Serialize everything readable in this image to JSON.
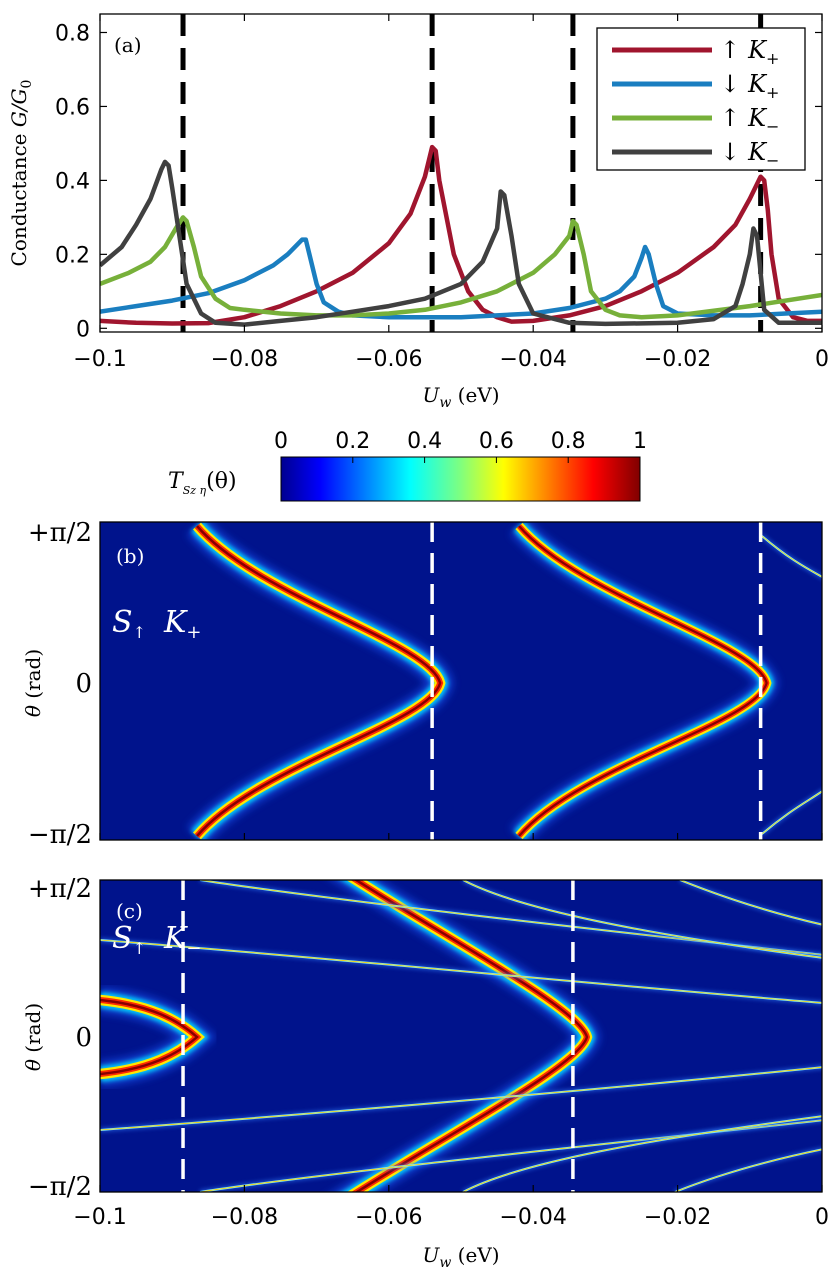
{
  "chart_data": [
    {
      "type": "line",
      "panel": "(a)",
      "xlabel_symbol": "U",
      "xlabel_sub": "w",
      "xlabel_unit": " (eV)",
      "ylabel_text": "Conductance ",
      "ylabel_symbol": "G/G",
      "ylabel_sub": "0",
      "xlim": [
        -0.1,
        0
      ],
      "ylim": [
        -0.01,
        0.85
      ],
      "xticks": [
        "−0.1",
        "−0.08",
        "−0.06",
        "−0.04",
        "−0.02",
        "0"
      ],
      "xtick_values": [
        -0.1,
        -0.08,
        -0.06,
        -0.04,
        -0.02,
        0
      ],
      "yticks": [
        "0",
        "0.2",
        "0.4",
        "0.6",
        "0.8"
      ],
      "ytick_values": [
        0,
        0.2,
        0.4,
        0.6,
        0.8
      ],
      "vlines": [
        -0.0885,
        -0.054,
        -0.0345,
        -0.0085
      ],
      "legend_position": "top-right",
      "series": [
        {
          "name_arrow": "↑",
          "name_K": "K",
          "name_sub": "+",
          "color": "#a0152e",
          "x": [
            -0.1,
            -0.095,
            -0.09,
            -0.085,
            -0.08,
            -0.075,
            -0.07,
            -0.065,
            -0.06,
            -0.057,
            -0.055,
            -0.054,
            -0.0535,
            -0.053,
            -0.051,
            -0.049,
            -0.047,
            -0.045,
            -0.043,
            -0.04,
            -0.035,
            -0.03,
            -0.025,
            -0.02,
            -0.015,
            -0.012,
            -0.01,
            -0.0085,
            -0.008,
            -0.0075,
            -0.007,
            -0.006,
            -0.004,
            -0.002,
            0
          ],
          "y": [
            0.02,
            0.015,
            0.013,
            0.014,
            0.03,
            0.06,
            0.1,
            0.15,
            0.23,
            0.31,
            0.41,
            0.49,
            0.48,
            0.4,
            0.2,
            0.1,
            0.05,
            0.03,
            0.018,
            0.02,
            0.035,
            0.06,
            0.1,
            0.15,
            0.22,
            0.28,
            0.35,
            0.41,
            0.4,
            0.32,
            0.2,
            0.08,
            0.03,
            0.02,
            0.02
          ]
        },
        {
          "name_arrow": "↓",
          "name_K": "K",
          "name_sub": "+",
          "color": "#1a7ec0",
          "x": [
            -0.1,
            -0.095,
            -0.09,
            -0.085,
            -0.08,
            -0.076,
            -0.074,
            -0.072,
            -0.0715,
            -0.071,
            -0.07,
            -0.069,
            -0.067,
            -0.065,
            -0.06,
            -0.05,
            -0.04,
            -0.035,
            -0.03,
            -0.028,
            -0.026,
            -0.025,
            -0.0245,
            -0.024,
            -0.023,
            -0.022,
            -0.02,
            -0.015,
            -0.01,
            -0.005,
            0
          ],
          "y": [
            0.045,
            0.06,
            0.075,
            0.095,
            0.13,
            0.17,
            0.2,
            0.24,
            0.24,
            0.2,
            0.12,
            0.07,
            0.045,
            0.035,
            0.03,
            0.03,
            0.04,
            0.055,
            0.08,
            0.1,
            0.14,
            0.19,
            0.22,
            0.2,
            0.12,
            0.06,
            0.04,
            0.035,
            0.035,
            0.04,
            0.045
          ]
        },
        {
          "name_arrow": "↑",
          "name_K": "K",
          "name_sub": "−",
          "color": "#77b03a",
          "x": [
            -0.1,
            -0.096,
            -0.093,
            -0.091,
            -0.0895,
            -0.0885,
            -0.088,
            -0.087,
            -0.086,
            -0.084,
            -0.082,
            -0.08,
            -0.075,
            -0.07,
            -0.065,
            -0.06,
            -0.055,
            -0.05,
            -0.045,
            -0.04,
            -0.037,
            -0.035,
            -0.0345,
            -0.034,
            -0.033,
            -0.032,
            -0.03,
            -0.028,
            -0.025,
            -0.02,
            -0.01,
            0
          ],
          "y": [
            0.12,
            0.15,
            0.18,
            0.22,
            0.27,
            0.3,
            0.29,
            0.22,
            0.14,
            0.08,
            0.055,
            0.05,
            0.04,
            0.035,
            0.035,
            0.04,
            0.05,
            0.07,
            0.1,
            0.15,
            0.2,
            0.25,
            0.29,
            0.28,
            0.2,
            0.1,
            0.05,
            0.035,
            0.03,
            0.035,
            0.06,
            0.09
          ]
        },
        {
          "name_arrow": "↓",
          "name_K": "K",
          "name_sub": "−",
          "color": "#404040",
          "x": [
            -0.1,
            -0.097,
            -0.095,
            -0.093,
            -0.0915,
            -0.091,
            -0.0905,
            -0.09,
            -0.089,
            -0.088,
            -0.086,
            -0.084,
            -0.08,
            -0.075,
            -0.07,
            -0.065,
            -0.06,
            -0.055,
            -0.05,
            -0.047,
            -0.045,
            -0.0445,
            -0.044,
            -0.043,
            -0.042,
            -0.04,
            -0.035,
            -0.03,
            -0.02,
            -0.015,
            -0.012,
            -0.011,
            -0.01,
            -0.0095,
            -0.009,
            -0.0085,
            -0.008,
            -0.006,
            0
          ],
          "y": [
            0.17,
            0.22,
            0.28,
            0.35,
            0.43,
            0.45,
            0.44,
            0.38,
            0.25,
            0.12,
            0.04,
            0.015,
            0.01,
            0.02,
            0.03,
            0.045,
            0.06,
            0.08,
            0.12,
            0.18,
            0.27,
            0.37,
            0.36,
            0.25,
            0.12,
            0.04,
            0.015,
            0.012,
            0.015,
            0.025,
            0.06,
            0.12,
            0.2,
            0.27,
            0.25,
            0.15,
            0.05,
            0.015,
            0.015
          ]
        }
      ]
    },
    {
      "type": "heatmap",
      "panel": "(b)",
      "spin_label_S": "S",
      "spin_label_sub": "↑",
      "spin_label_K": "K",
      "spin_label_Ksub": "+",
      "ylabel_symbol": "θ",
      "ylabel_unit": " (rad)",
      "yticks": [
        "+π/2",
        "0",
        "−π/2"
      ],
      "xlim": [
        -0.1,
        0
      ],
      "vlines": [
        -0.054,
        -0.0085
      ],
      "colormap": "jet",
      "background": "#00138c"
    },
    {
      "type": "heatmap",
      "panel": "(c)",
      "spin_label_S": "S",
      "spin_label_sub": "↑",
      "spin_label_K": "K",
      "spin_label_Ksub": "−",
      "ylabel_symbol": "θ",
      "ylabel_unit": " (rad)",
      "yticks": [
        "+π/2",
        "0",
        "−π/2"
      ],
      "xticks": [
        "−0.1",
        "−0.08",
        "−0.06",
        "−0.04",
        "−0.02",
        "0"
      ],
      "xlabel_symbol": "U",
      "xlabel_sub": "w",
      "xlabel_unit": " (eV)",
      "xlim": [
        -0.1,
        0
      ],
      "vlines": [
        -0.0885,
        -0.0345
      ],
      "colormap": "jet",
      "background": "#00138c"
    }
  ],
  "colorbar": {
    "label_symbol": "T",
    "label_sub": "Sz η",
    "label_arg": "(θ)",
    "ticks": [
      "0",
      "0.2",
      "0.4",
      "0.6",
      "0.8",
      "1"
    ],
    "tick_values": [
      0,
      0.2,
      0.4,
      0.6,
      0.8,
      1
    ]
  }
}
